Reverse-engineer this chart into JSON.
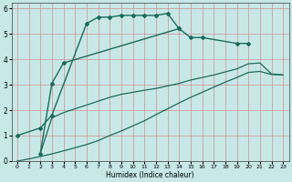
{
  "xlabel": "Humidex (Indice chaleur)",
  "ylabel": "",
  "bg_color": "#c8e8e8",
  "grid_color": "#d09090",
  "line_color": "#1a6b5a",
  "xlim": [
    -0.5,
    23.5
  ],
  "ylim": [
    0,
    6.2
  ],
  "xticks": [
    0,
    1,
    2,
    3,
    4,
    5,
    6,
    7,
    8,
    9,
    10,
    11,
    12,
    13,
    14,
    15,
    16,
    17,
    18,
    19,
    20,
    21,
    22,
    23
  ],
  "yticks": [
    0,
    1,
    2,
    3,
    4,
    5,
    6
  ],
  "series": [
    {
      "x": [
        0,
        2,
        3,
        6,
        7,
        8,
        9,
        10,
        11,
        12,
        13,
        14
      ],
      "y": [
        1.0,
        1.3,
        1.8,
        5.4,
        5.65,
        5.65,
        5.72,
        5.72,
        5.72,
        5.72,
        5.8,
        5.2
      ],
      "marker": "D",
      "markersize": 2.0,
      "linewidth": 1.0
    },
    {
      "x": [
        2,
        3,
        4,
        14,
        15,
        16,
        19,
        20
      ],
      "y": [
        0.3,
        3.05,
        3.85,
        5.2,
        4.85,
        4.85,
        4.62,
        4.62
      ],
      "marker": "D",
      "markersize": 2.0,
      "linewidth": 1.0
    },
    {
      "x": [
        2,
        3,
        4,
        5,
        6,
        7,
        8,
        9,
        10,
        11,
        12,
        13,
        14,
        15,
        16,
        17,
        18,
        19,
        20,
        21,
        22,
        23
      ],
      "y": [
        0.3,
        1.7,
        1.9,
        2.05,
        2.2,
        2.35,
        2.5,
        2.62,
        2.7,
        2.78,
        2.85,
        2.95,
        3.05,
        3.18,
        3.28,
        3.38,
        3.5,
        3.62,
        3.82,
        3.85,
        3.42,
        3.38
      ],
      "marker": null,
      "linewidth": 0.9
    },
    {
      "x": [
        0,
        1,
        2,
        3,
        4,
        5,
        6,
        7,
        8,
        9,
        10,
        11,
        12,
        13,
        14,
        15,
        16,
        17,
        18,
        19,
        20,
        21,
        22,
        23
      ],
      "y": [
        0.0,
        0.08,
        0.18,
        0.28,
        0.4,
        0.52,
        0.65,
        0.8,
        1.0,
        1.18,
        1.38,
        1.58,
        1.82,
        2.05,
        2.28,
        2.5,
        2.7,
        2.9,
        3.1,
        3.28,
        3.48,
        3.52,
        3.4,
        3.38
      ],
      "marker": null,
      "linewidth": 0.9
    }
  ]
}
